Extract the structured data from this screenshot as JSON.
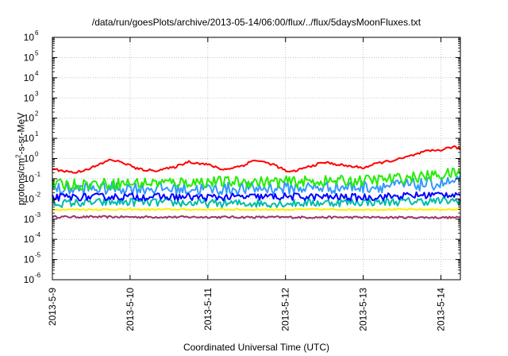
{
  "chart_data": {
    "type": "line",
    "title": "/data/run/goesPlots/archive/2013-05-14/06:00/flux/../flux/5daysMoonFluxes.txt",
    "xlabel": "Coordinated Universal Time (UTC)",
    "ylabel_prefix": "protons/cm",
    "ylabel_sup": "2",
    "ylabel_suffix": "-s-sr-MeV",
    "yscale": "log",
    "ylim_exponents": [
      -6,
      6
    ],
    "y_tick_base": "10",
    "y_tick_exponents": [
      "-6",
      "-5",
      "-4",
      "-3",
      "-2",
      "-1",
      "0",
      "1",
      "2",
      "3",
      "4",
      "5",
      "6"
    ],
    "x_range_days": [
      "2013-5-9",
      "2013-5-14 06:00"
    ],
    "x_tick_labels": [
      "2013-5-9",
      "2013-5-10",
      "2013-5-11",
      "2013-5-12",
      "2013-5-13",
      "2013-5-14"
    ],
    "grid": true,
    "legend": "none",
    "series": [
      {
        "color": "#ff0000",
        "knots": [
          [
            0.0,
            0.3
          ],
          [
            0.3,
            0.2
          ],
          [
            0.55,
            0.4
          ],
          [
            0.75,
            0.9
          ],
          [
            0.95,
            0.55
          ],
          [
            1.1,
            0.3
          ],
          [
            1.3,
            0.25
          ],
          [
            1.55,
            0.35
          ],
          [
            1.75,
            0.7
          ],
          [
            2.0,
            0.5
          ],
          [
            2.2,
            0.28
          ],
          [
            2.45,
            0.45
          ],
          [
            2.6,
            0.85
          ],
          [
            2.85,
            0.5
          ],
          [
            3.05,
            0.2
          ],
          [
            3.3,
            0.4
          ],
          [
            3.5,
            0.65
          ],
          [
            3.75,
            0.45
          ],
          [
            4.0,
            0.35
          ],
          [
            4.2,
            0.6
          ],
          [
            4.45,
            0.9
          ],
          [
            4.6,
            1.3
          ],
          [
            4.8,
            2.2
          ],
          [
            5.0,
            2.7
          ],
          [
            5.15,
            3.8
          ],
          [
            5.25,
            3.0
          ]
        ],
        "noise": 0.06
      },
      {
        "color": "#22ee00",
        "knots": [
          [
            0.0,
            0.05
          ],
          [
            1.0,
            0.06
          ],
          [
            2.0,
            0.07
          ],
          [
            3.0,
            0.07
          ],
          [
            4.0,
            0.08
          ],
          [
            4.7,
            0.12
          ],
          [
            5.25,
            0.2
          ]
        ],
        "noise": 0.28
      },
      {
        "color": "#0000ff",
        "knots": [
          [
            0.0,
            0.012
          ],
          [
            1.0,
            0.013
          ],
          [
            2.0,
            0.012
          ],
          [
            3.0,
            0.013
          ],
          [
            4.0,
            0.012
          ],
          [
            4.7,
            0.015
          ],
          [
            5.25,
            0.018
          ]
        ],
        "noise": 0.18
      },
      {
        "color": "#3399ff",
        "knots": [
          [
            0.0,
            0.03
          ],
          [
            1.0,
            0.035
          ],
          [
            2.0,
            0.03
          ],
          [
            3.0,
            0.035
          ],
          [
            4.0,
            0.04
          ],
          [
            4.7,
            0.05
          ],
          [
            5.25,
            0.07
          ]
        ],
        "noise": 0.32
      },
      {
        "color": "#00bbaa",
        "knots": [
          [
            0.0,
            0.006
          ],
          [
            1.0,
            0.007
          ],
          [
            2.0,
            0.006
          ],
          [
            3.0,
            0.006
          ],
          [
            4.0,
            0.007
          ],
          [
            5.25,
            0.008
          ]
        ],
        "noise": 0.2
      },
      {
        "color": "#ffee00",
        "knots": [
          [
            0.0,
            0.003
          ],
          [
            5.25,
            0.003
          ]
        ],
        "noise": 0.04
      },
      {
        "color": "#993366",
        "knots": [
          [
            0.0,
            0.0013
          ],
          [
            5.25,
            0.0012
          ]
        ],
        "noise": 0.05
      }
    ]
  }
}
